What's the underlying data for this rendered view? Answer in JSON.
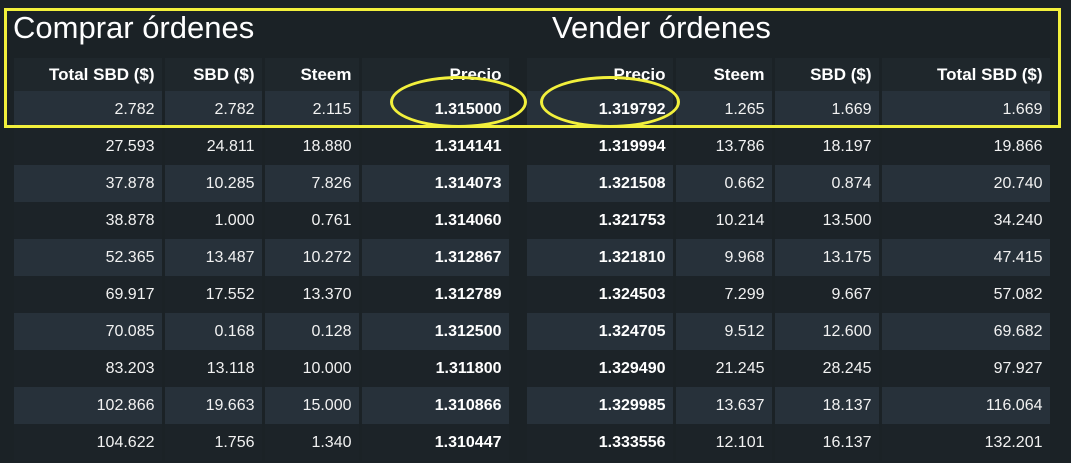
{
  "buy": {
    "title": "Comprar órdenes",
    "headers": [
      "Total SBD ($)",
      "SBD ($)",
      "Steem",
      "Precio"
    ],
    "rows": [
      [
        "2.782",
        "2.782",
        "2.115",
        "1.315000"
      ],
      [
        "27.593",
        "24.811",
        "18.880",
        "1.314141"
      ],
      [
        "37.878",
        "10.285",
        "7.826",
        "1.314073"
      ],
      [
        "38.878",
        "1.000",
        "0.761",
        "1.314060"
      ],
      [
        "52.365",
        "13.487",
        "10.272",
        "1.312867"
      ],
      [
        "69.917",
        "17.552",
        "13.370",
        "1.312789"
      ],
      [
        "70.085",
        "0.168",
        "0.128",
        "1.312500"
      ],
      [
        "83.203",
        "13.118",
        "10.000",
        "1.311800"
      ],
      [
        "102.866",
        "19.663",
        "15.000",
        "1.310866"
      ],
      [
        "104.622",
        "1.756",
        "1.340",
        "1.310447"
      ]
    ]
  },
  "sell": {
    "title": "Vender órdenes",
    "headers": [
      "Precio",
      "Steem",
      "SBD ($)",
      "Total SBD ($)"
    ],
    "rows": [
      [
        "1.319792",
        "1.265",
        "1.669",
        "1.669"
      ],
      [
        "1.319994",
        "13.786",
        "18.197",
        "19.866"
      ],
      [
        "1.321508",
        "0.662",
        "0.874",
        "20.740"
      ],
      [
        "1.321753",
        "10.214",
        "13.500",
        "34.240"
      ],
      [
        "1.321810",
        "9.968",
        "13.175",
        "47.415"
      ],
      [
        "1.324503",
        "7.299",
        "9.667",
        "57.082"
      ],
      [
        "1.324705",
        "9.512",
        "12.600",
        "69.682"
      ],
      [
        "1.329490",
        "21.245",
        "28.245",
        "97.927"
      ],
      [
        "1.329985",
        "13.637",
        "18.137",
        "116.064"
      ],
      [
        "1.333556",
        "12.101",
        "16.137",
        "132.201"
      ]
    ]
  },
  "colors": {
    "background": "#1b2226",
    "row_even": "#27313a",
    "row_odd": "#1c2328",
    "highlight": "#f2f03c",
    "text": "#ffffff"
  }
}
